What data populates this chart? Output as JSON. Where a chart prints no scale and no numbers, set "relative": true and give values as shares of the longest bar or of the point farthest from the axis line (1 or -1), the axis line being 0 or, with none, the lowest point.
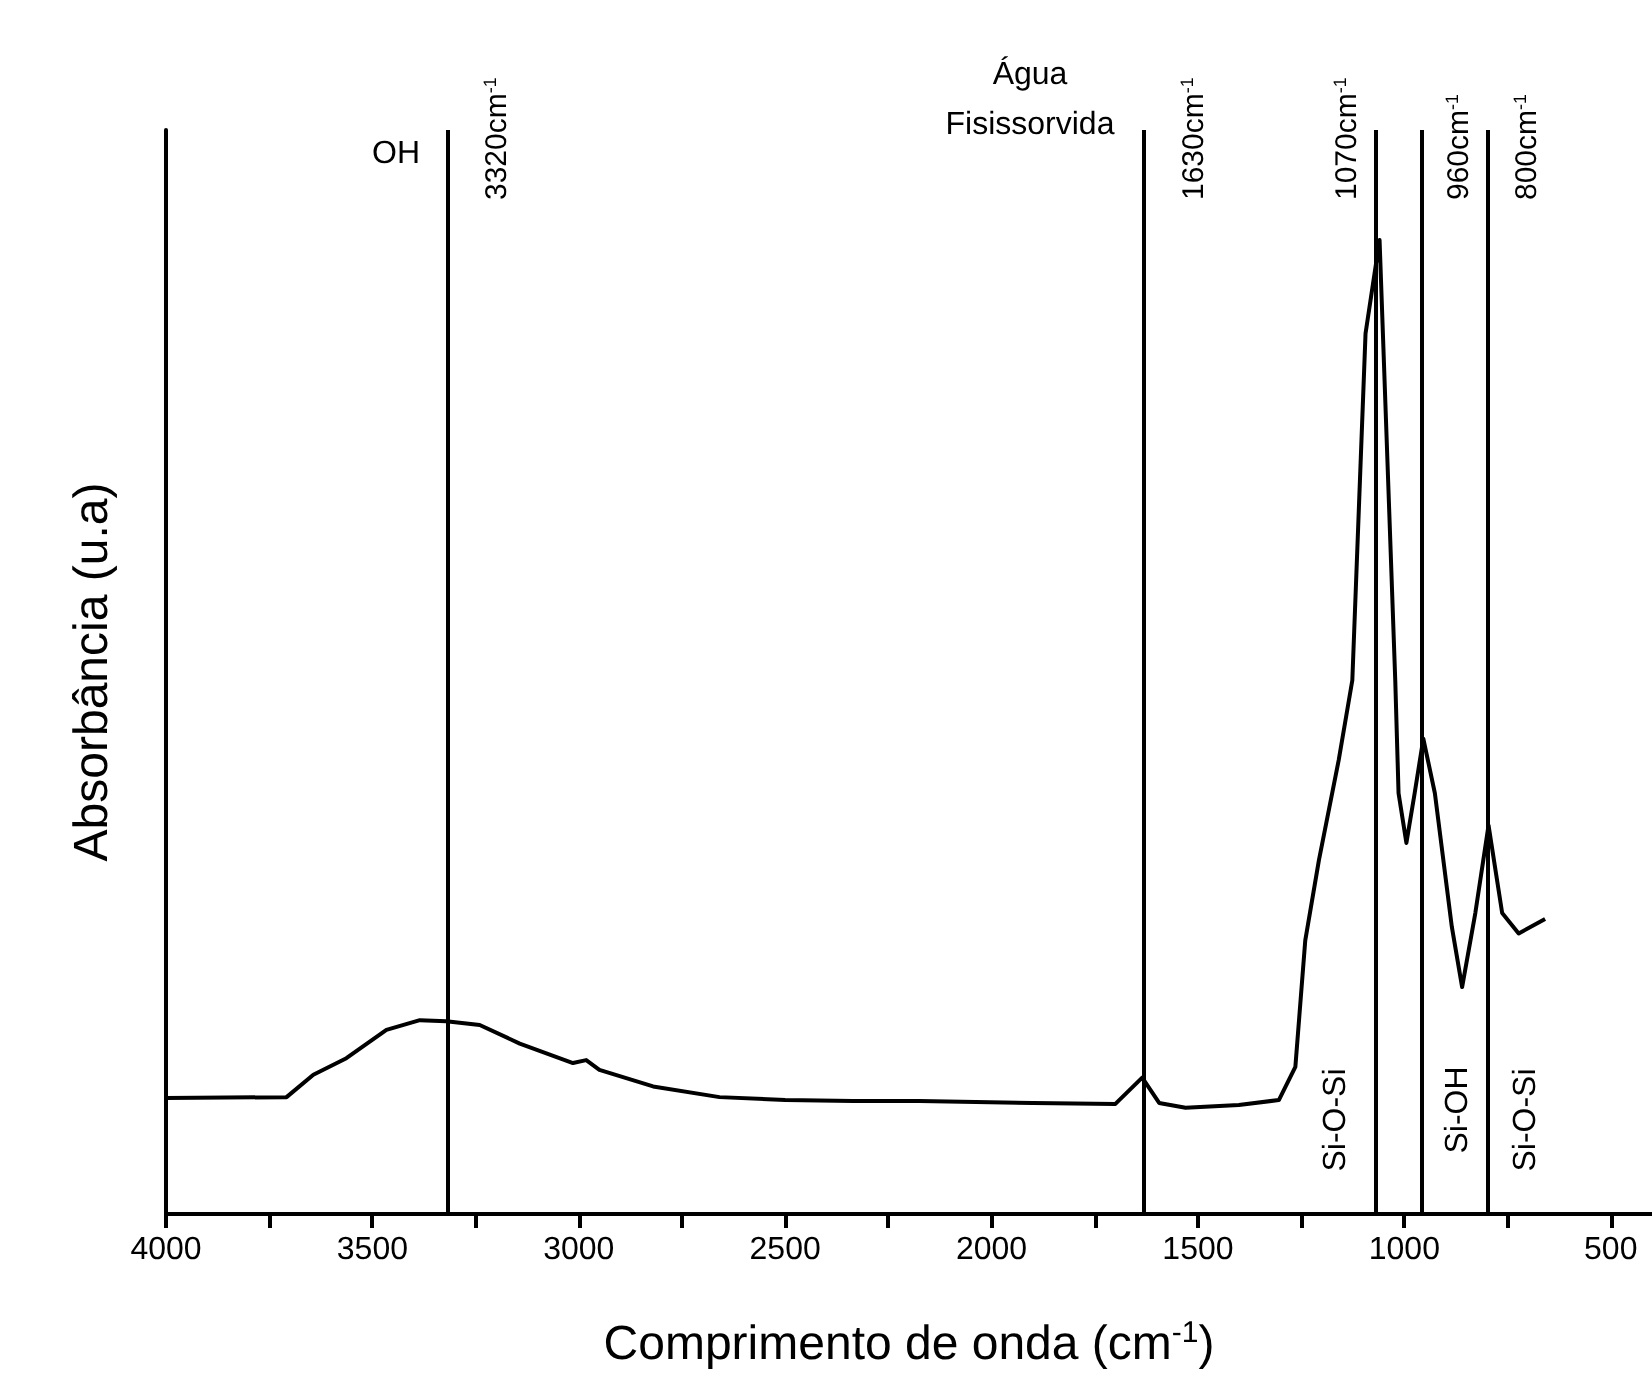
{
  "chart_data": {
    "type": "line",
    "relative": true,
    "xlabel": "Comprimento de onda (cm$^{-1}$)",
    "ylabel": "Absorbância (u.a)",
    "xlim": [
      4000,
      400
    ],
    "xticks": [
      4000,
      {
        "value": 3750,
        "label": null
      },
      3500,
      {
        "value": 3250,
        "label": null
      },
      3000,
      {
        "value": 2750,
        "label": null
      },
      2500,
      {
        "value": 2250,
        "label": null
      },
      2000,
      {
        "value": 1750,
        "label": null
      },
      1500,
      {
        "value": 1250,
        "label": null
      },
      1000,
      {
        "value": 750,
        "label": null
      },
      500
    ],
    "x": [
      4000,
      3708,
      3643,
      3563,
      3466,
      3385,
      3321,
      3240,
      3143,
      3014,
      2982,
      2950,
      2820,
      2659,
      2500,
      2336,
      2175,
      1900,
      1700,
      1635,
      1594,
      1530,
      1401,
      1304,
      1264,
      1240,
      1207,
      1159,
      1126,
      1094,
      1060,
      1022,
      1014,
      995,
      975,
      954,
      926,
      885,
      860,
      828,
      796,
      763,
      723,
      659
    ],
    "series": [
      {
        "color": "#000000",
        "values": [
          0.119,
          0.12,
          0.143,
          0.16,
          0.189,
          0.199,
          0.198,
          0.194,
          0.175,
          0.155,
          0.158,
          0.148,
          0.131,
          0.12,
          0.117,
          0.116,
          0.116,
          0.114,
          0.113,
          0.14,
          0.114,
          0.109,
          0.112,
          0.117,
          0.151,
          0.281,
          0.363,
          0.466,
          0.548,
          0.904,
          1.0,
          0.548,
          0.432,
          0.381,
          0.432,
          0.488,
          0.432,
          0.295,
          0.233,
          0.309,
          0.399,
          0.309,
          0.288,
          0.303
        ]
      }
    ],
    "ref_lines": [
      {
        "axis": "x",
        "value": 3320,
        "label": "3320cm$^{-1}$"
      },
      {
        "axis": "x",
        "value": 1630,
        "label": "1630cm$^{-1}$"
      },
      {
        "axis": "x",
        "value": 1070,
        "label": "1070cm$^{-1}$"
      },
      {
        "axis": "x",
        "value": 960,
        "label": "960cm$^{-1}$"
      },
      {
        "axis": "x",
        "value": 800,
        "label": "800cm$^{-1}$"
      }
    ],
    "annotations": [
      "OH",
      "Água\nFisissorvida",
      "Si-O-Si",
      "Si-OH",
      "Si-O-Si"
    ]
  }
}
